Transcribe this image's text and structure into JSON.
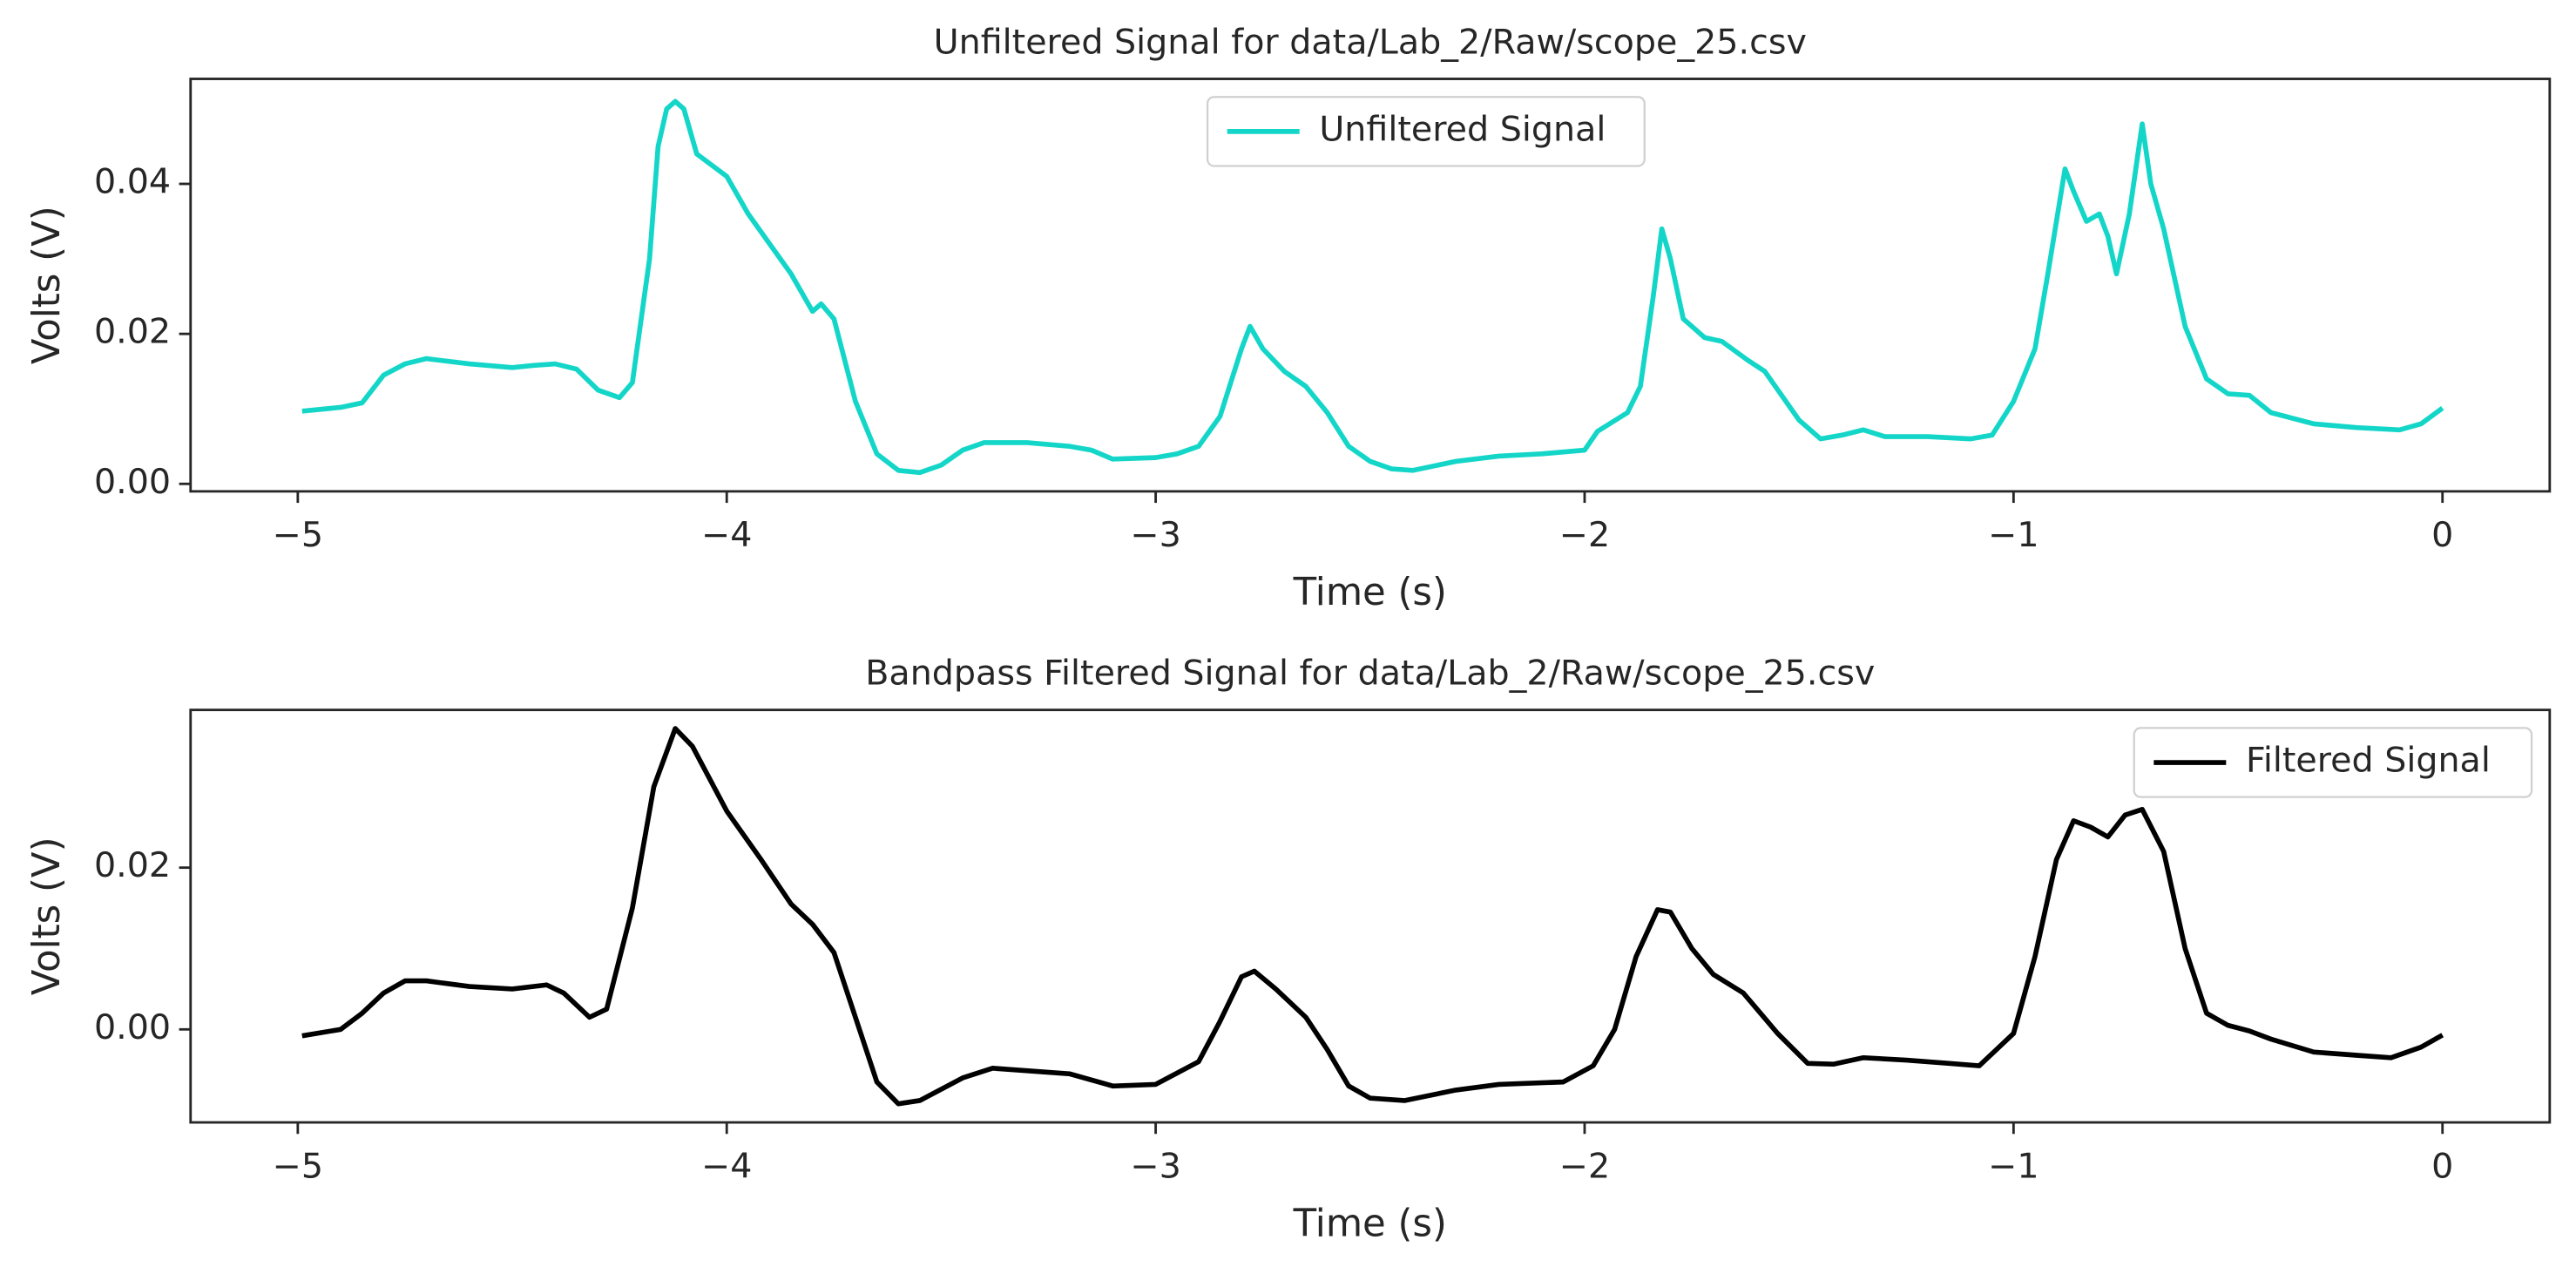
{
  "chart_data": [
    {
      "type": "line",
      "title": "Unfiltered Signal for data/Lab_2/Raw/scope_25.csv",
      "xlabel": "Time (s)",
      "ylabel": "Volts (V)",
      "x": [
        -4.99,
        -4.9,
        -4.85,
        -4.8,
        -4.75,
        -4.7,
        -4.6,
        -4.5,
        -4.45,
        -4.4,
        -4.35,
        -4.3,
        -4.25,
        -4.22,
        -4.18,
        -4.16,
        -4.14,
        -4.12,
        -4.1,
        -4.07,
        -4.0,
        -3.95,
        -3.9,
        -3.85,
        -3.8,
        -3.78,
        -3.75,
        -3.7,
        -3.65,
        -3.6,
        -3.55,
        -3.5,
        -3.45,
        -3.4,
        -3.3,
        -3.2,
        -3.15,
        -3.1,
        -3.0,
        -2.95,
        -2.9,
        -2.85,
        -2.8,
        -2.78,
        -2.75,
        -2.7,
        -2.65,
        -2.6,
        -2.55,
        -2.5,
        -2.45,
        -2.4,
        -2.3,
        -2.2,
        -2.1,
        -2.0,
        -1.97,
        -1.9,
        -1.87,
        -1.84,
        -1.82,
        -1.8,
        -1.77,
        -1.72,
        -1.68,
        -1.62,
        -1.58,
        -1.5,
        -1.45,
        -1.4,
        -1.35,
        -1.3,
        -1.2,
        -1.1,
        -1.05,
        -1.0,
        -0.95,
        -0.92,
        -0.88,
        -0.86,
        -0.83,
        -0.8,
        -0.78,
        -0.76,
        -0.73,
        -0.71,
        -0.7,
        -0.68,
        -0.65,
        -0.6,
        -0.55,
        -0.5,
        -0.45,
        -0.4,
        -0.3,
        -0.2,
        -0.1,
        -0.05,
        0.0
      ],
      "series": [
        {
          "name": "Unfiltered Signal",
          "color": "#14d6c8",
          "values": [
            0.0097,
            0.0102,
            0.0108,
            0.0145,
            0.016,
            0.0167,
            0.016,
            0.0155,
            0.0158,
            0.016,
            0.0153,
            0.0125,
            0.0115,
            0.0135,
            0.03,
            0.045,
            0.05,
            0.051,
            0.05,
            0.044,
            0.041,
            0.036,
            0.032,
            0.028,
            0.023,
            0.024,
            0.022,
            0.011,
            0.004,
            0.0018,
            0.0015,
            0.0025,
            0.0045,
            0.0055,
            0.0055,
            0.005,
            0.0045,
            0.0033,
            0.0035,
            0.004,
            0.005,
            0.009,
            0.018,
            0.021,
            0.018,
            0.015,
            0.013,
            0.0095,
            0.005,
            0.003,
            0.002,
            0.0018,
            0.003,
            0.0037,
            0.004,
            0.0045,
            0.007,
            0.0095,
            0.013,
            0.025,
            0.034,
            0.03,
            0.022,
            0.0195,
            0.019,
            0.0165,
            0.015,
            0.0085,
            0.006,
            0.0065,
            0.0072,
            0.0063,
            0.0063,
            0.006,
            0.0065,
            0.011,
            0.018,
            0.028,
            0.042,
            0.039,
            0.035,
            0.036,
            0.033,
            0.028,
            0.036,
            0.044,
            0.048,
            0.04,
            0.034,
            0.021,
            0.014,
            0.012,
            0.0118,
            0.0095,
            0.008,
            0.0075,
            0.0072,
            0.008,
            0.0101
          ]
        }
      ],
      "xlim": [
        -5.25,
        0.25
      ],
      "xticks": [
        {
          "value": -5,
          "label": "−5"
        },
        {
          "value": -4,
          "label": "−4"
        },
        {
          "value": -3,
          "label": "−3"
        },
        {
          "value": -2,
          "label": "−2"
        },
        {
          "value": -1,
          "label": "−1"
        },
        0
      ],
      "ylim": [
        -0.001,
        0.054
      ],
      "yticks": [
        {
          "value": 0,
          "label": "0.00"
        },
        {
          "value": 0.02,
          "label": "0.02"
        },
        {
          "value": 0.04,
          "label": "0.04"
        }
      ],
      "legend": "upper center"
    },
    {
      "type": "line",
      "title": "Bandpass Filtered Signal for data/Lab_2/Raw/scope_25.csv",
      "xlabel": "Time (s)",
      "ylabel": "Volts (V)",
      "x": [
        -4.99,
        -4.9,
        -4.85,
        -4.8,
        -4.75,
        -4.7,
        -4.6,
        -4.5,
        -4.42,
        -4.38,
        -4.32,
        -4.28,
        -4.22,
        -4.17,
        -4.12,
        -4.08,
        -4.0,
        -3.92,
        -3.85,
        -3.8,
        -3.75,
        -3.7,
        -3.65,
        -3.6,
        -3.55,
        -3.45,
        -3.38,
        -3.2,
        -3.1,
        -3.0,
        -2.9,
        -2.85,
        -2.8,
        -2.77,
        -2.72,
        -2.65,
        -2.6,
        -2.55,
        -2.5,
        -2.42,
        -2.3,
        -2.2,
        -2.05,
        -1.98,
        -1.93,
        -1.88,
        -1.83,
        -1.8,
        -1.75,
        -1.7,
        -1.63,
        -1.55,
        -1.48,
        -1.42,
        -1.35,
        -1.25,
        -1.15,
        -1.08,
        -1.0,
        -0.95,
        -0.9,
        -0.86,
        -0.82,
        -0.78,
        -0.74,
        -0.7,
        -0.65,
        -0.6,
        -0.55,
        -0.5,
        -0.45,
        -0.4,
        -0.3,
        -0.2,
        -0.12,
        -0.05,
        0.0
      ],
      "series": [
        {
          "name": "Filtered Signal",
          "color": "#000000",
          "values": [
            -0.0008,
            0.0,
            0.002,
            0.0045,
            0.006,
            0.006,
            0.0053,
            0.005,
            0.0055,
            0.0045,
            0.0015,
            0.0025,
            0.015,
            0.03,
            0.0372,
            0.035,
            0.027,
            0.021,
            0.0155,
            0.013,
            0.0095,
            0.0015,
            -0.0065,
            -0.0092,
            -0.0088,
            -0.006,
            -0.0048,
            -0.0055,
            -0.007,
            -0.0068,
            -0.004,
            0.001,
            0.0065,
            0.0072,
            0.005,
            0.0015,
            -0.0025,
            -0.007,
            -0.0085,
            -0.0088,
            -0.0075,
            -0.0068,
            -0.0065,
            -0.0045,
            0.0,
            0.009,
            0.0148,
            0.0145,
            0.01,
            0.0068,
            0.0045,
            -0.0005,
            -0.0042,
            -0.0043,
            -0.0035,
            -0.0038,
            -0.0042,
            -0.0045,
            -0.0005,
            0.009,
            0.021,
            0.0258,
            0.025,
            0.0238,
            0.0265,
            0.0272,
            0.022,
            0.01,
            0.002,
            0.0005,
            -0.0002,
            -0.0012,
            -0.0028,
            -0.0032,
            -0.0035,
            -0.0022,
            -0.0007
          ]
        }
      ],
      "xlim": [
        -5.25,
        0.25
      ],
      "xticks": [
        {
          "value": -5,
          "label": "−5"
        },
        {
          "value": -4,
          "label": "−4"
        },
        {
          "value": -3,
          "label": "−3"
        },
        {
          "value": -2,
          "label": "−2"
        },
        {
          "value": -1,
          "label": "−1"
        },
        0
      ],
      "ylim": [
        -0.0115,
        0.0395
      ],
      "yticks": [
        {
          "value": 0,
          "label": "0.00"
        },
        {
          "value": 0.02,
          "label": "0.02"
        }
      ],
      "legend": "upper right"
    }
  ]
}
